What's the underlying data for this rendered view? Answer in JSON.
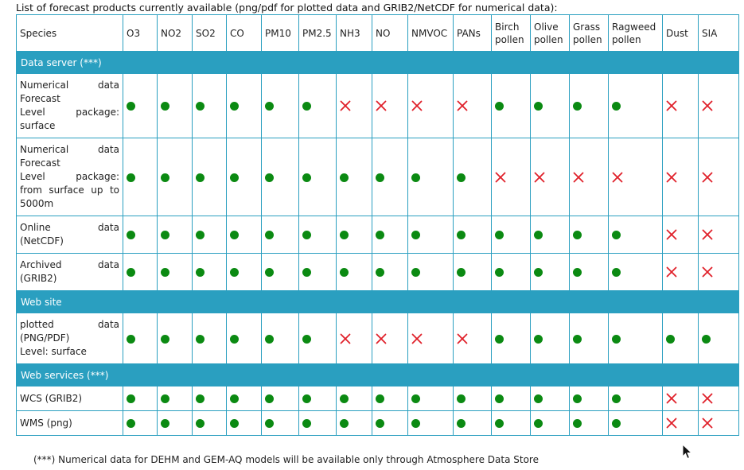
{
  "intro_text": "List of forecast products currently available (png/pdf for plotted data and GRIB2/NetCDF for numerical data):",
  "footnote": "(***) Numerical data for DEHM and GEM-AQ models will be available only through Atmosphere Data Store",
  "colors": {
    "section_bg": "#2a9fc0",
    "available": "#0b8a12",
    "unavailable": "#e0202a"
  },
  "icons": {
    "available": "green-dot-icon",
    "unavailable": "red-cross-icon"
  },
  "table": {
    "header_label": "Species",
    "columns": [
      "O3",
      "NO2",
      "SO2",
      "CO",
      "PM10",
      "PM2.5",
      "NH3",
      "NO",
      "NMVOC",
      "PANs",
      "Birch pollen",
      "Olive pollen",
      "Grass pollen",
      "Ragweed pollen",
      "Dust",
      "SIA"
    ],
    "sections": [
      {
        "title": "Data server (***)",
        "rows": [
          {
            "label": [
              "Numerical data",
              "Forecast",
              "Level package:",
              "surface"
            ],
            "marks": [
              "y",
              "y",
              "y",
              "y",
              "y",
              "y",
              "n",
              "n",
              "n",
              "n",
              "y",
              "y",
              "y",
              "y",
              "n",
              "n"
            ]
          },
          {
            "label": [
              "Numerical data",
              "Forecast",
              "Level package:",
              "from surface up to",
              "5000m"
            ],
            "marks": [
              "y",
              "y",
              "y",
              "y",
              "y",
              "y",
              "y",
              "y",
              "y",
              "y",
              "n",
              "n",
              "n",
              "n",
              "n",
              "n"
            ]
          },
          {
            "label": [
              "Online data",
              "(NetCDF)"
            ],
            "marks": [
              "y",
              "y",
              "y",
              "y",
              "y",
              "y",
              "y",
              "y",
              "y",
              "y",
              "y",
              "y",
              "y",
              "y",
              "n",
              "n"
            ]
          },
          {
            "label": [
              "Archived data",
              "(GRIB2)"
            ],
            "marks": [
              "y",
              "y",
              "y",
              "y",
              "y",
              "y",
              "y",
              "y",
              "y",
              "y",
              "y",
              "y",
              "y",
              "y",
              "n",
              "n"
            ]
          }
        ]
      },
      {
        "title": "Web site",
        "rows": [
          {
            "label": [
              "plotted data",
              "(PNG/PDF)",
              "Level: surface"
            ],
            "marks": [
              "y",
              "y",
              "y",
              "y",
              "y",
              "y",
              "n",
              "n",
              "n",
              "n",
              "y",
              "y",
              "y",
              "y",
              "y",
              "y"
            ]
          }
        ]
      },
      {
        "title": "Web services (***)",
        "rows": [
          {
            "label": [
              "WCS (GRIB2)"
            ],
            "marks": [
              "y",
              "y",
              "y",
              "y",
              "y",
              "y",
              "y",
              "y",
              "y",
              "y",
              "y",
              "y",
              "y",
              "y",
              "n",
              "n"
            ]
          },
          {
            "label": [
              "WMS (png)"
            ],
            "marks": [
              "y",
              "y",
              "y",
              "y",
              "y",
              "y",
              "y",
              "y",
              "y",
              "y",
              "y",
              "y",
              "y",
              "y",
              "n",
              "n"
            ]
          }
        ]
      }
    ]
  }
}
